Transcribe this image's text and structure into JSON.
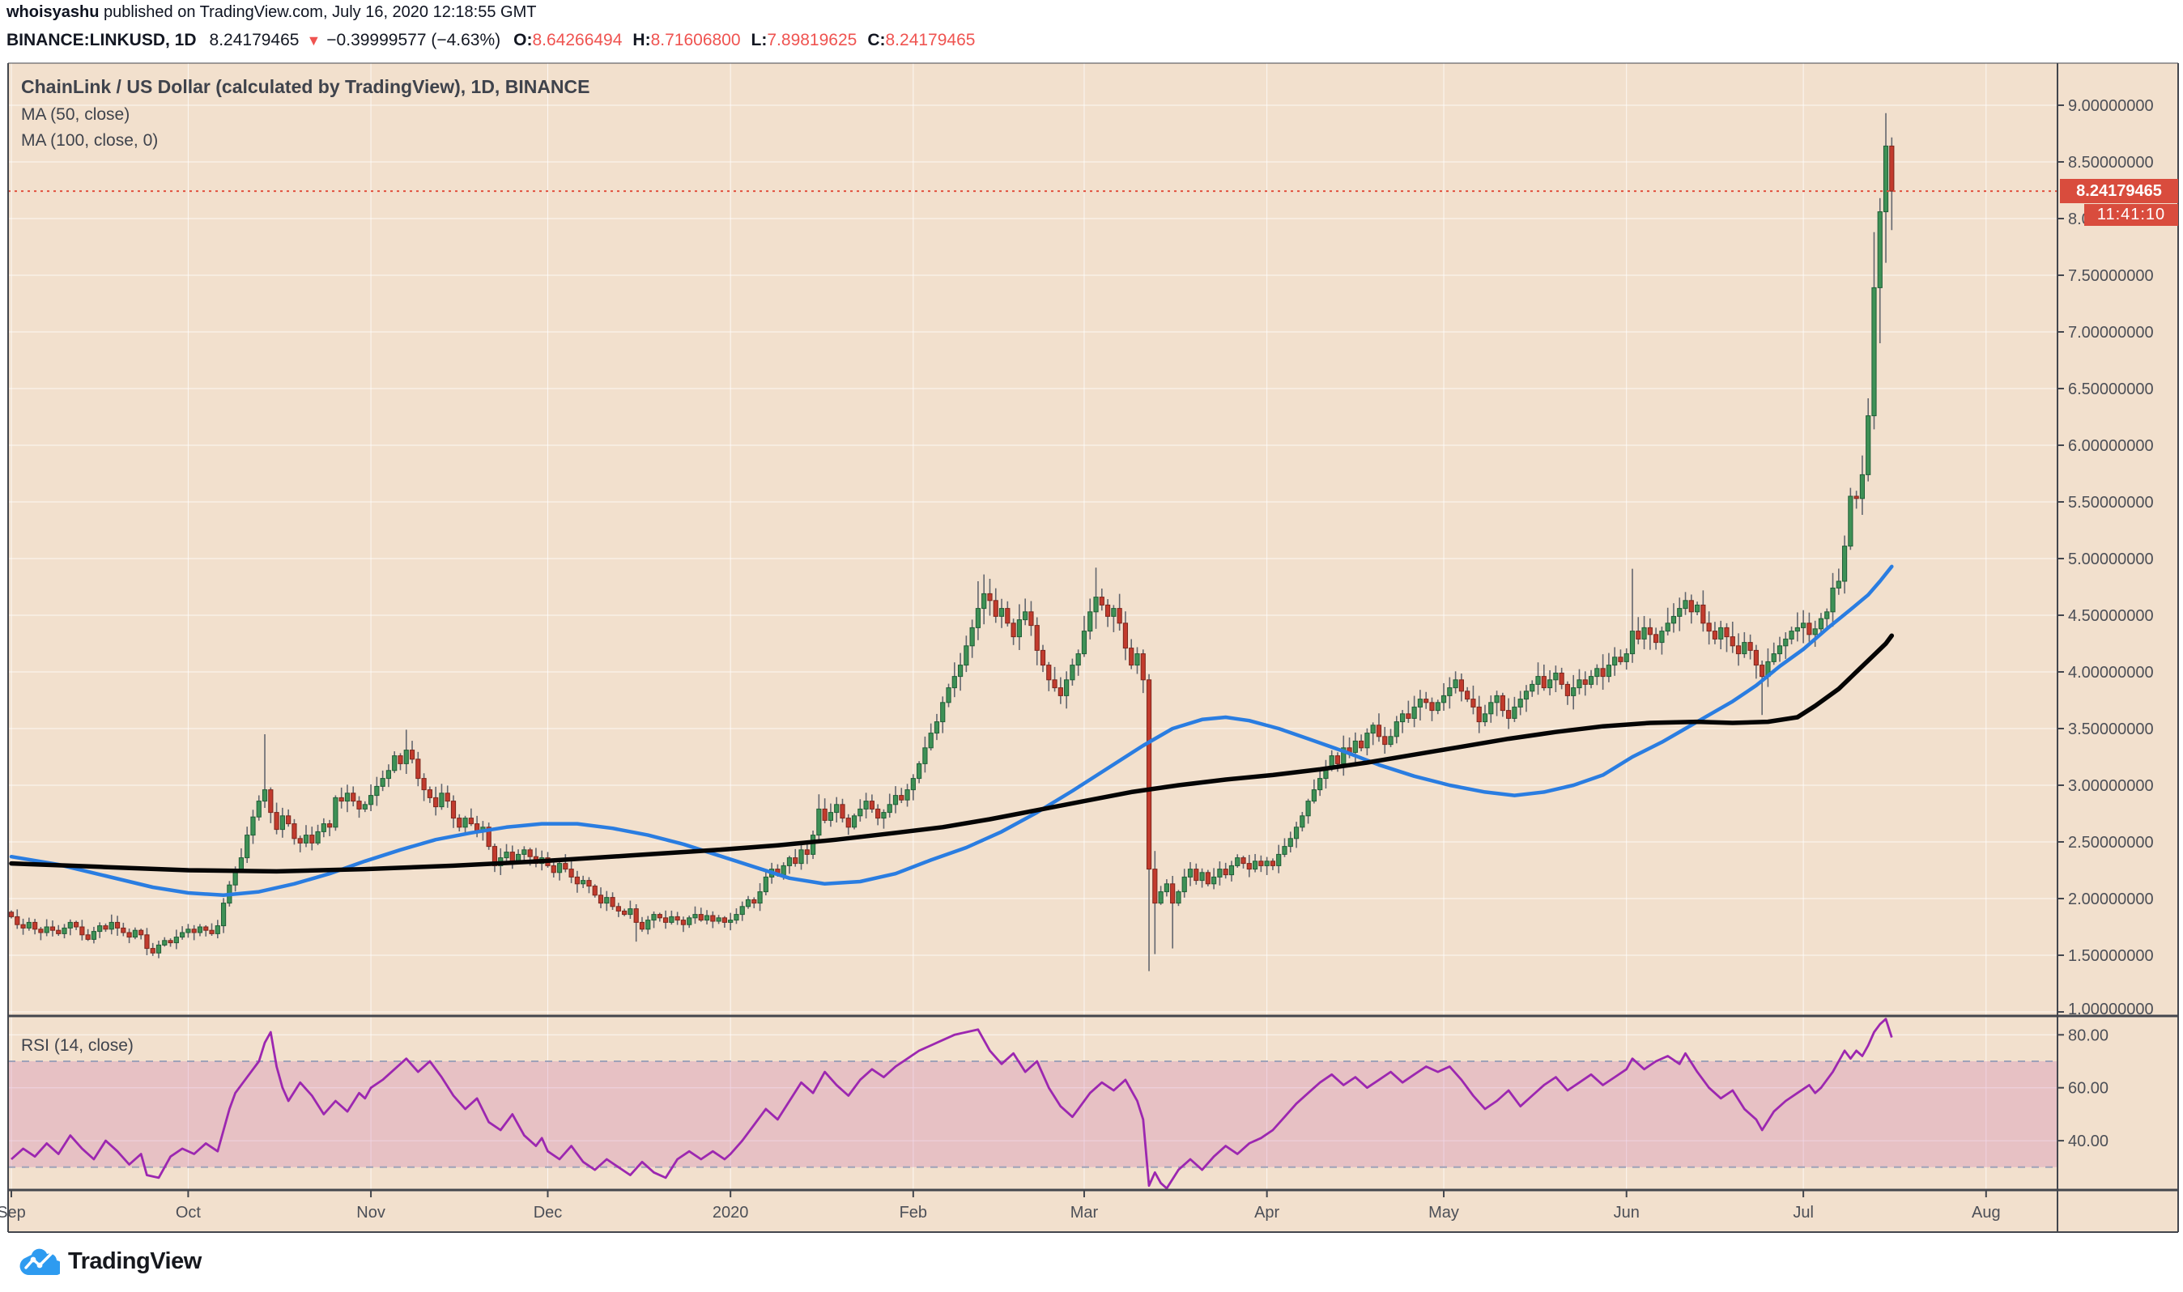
{
  "header": {
    "author": "whoisyashu",
    "byline_rest": " published on TradingView.com, July 16, 2020 12:18:55 GMT"
  },
  "symbol_bar": {
    "symbol": "BINANCE:LINKUSD, 1D",
    "last_price": "8.24179465",
    "direction_icon": "▼",
    "change": "−0.39999577 (−4.63%)",
    "ohlc": [
      {
        "label": "O:",
        "value": "8.64266494"
      },
      {
        "label": "H:",
        "value": "8.71606800"
      },
      {
        "label": "L:",
        "value": "7.89819625"
      },
      {
        "label": "C:",
        "value": "8.24179465"
      }
    ]
  },
  "legend": {
    "title": "ChainLink / US Dollar (calculated by TradingView), 1D, BINANCE",
    "ma50": "MA (50, close)",
    "ma100": "MA (100, close, 0)"
  },
  "rsi_label": "RSI (14, close)",
  "price_axis_label": {
    "price": "8.24179465",
    "countdown": "11:41:10"
  },
  "logo": {
    "text": "TradingView"
  },
  "colors": {
    "chart_bg": "#F2E0CD",
    "grid": "rgba(255,255,255,0.75)",
    "frame": "#43464d",
    "axis_text": "#4c4f57",
    "candle_up_fill": "#3E9156",
    "candle_up_stroke": "#1F5E36",
    "candle_down_fill": "#C23B2D",
    "candle_down_stroke": "#7E261C",
    "wick": "#63666e",
    "ma50": "#2A7DE1",
    "ma100": "#050505",
    "rsi_line": "#9C27B0",
    "rsi_band": "rgba(200,100,170,0.25)",
    "rsi_dashed": "#9fa2b8",
    "price_line": "#E1503F",
    "label_bg": "#D94C3D",
    "value_red": "#ef5350"
  },
  "chart_data": {
    "type": "candlestick",
    "title": "ChainLink / US Dollar (calculated by TradingView), 1D, BINANCE",
    "exchange": "BINANCE",
    "interval": "1D",
    "price_axis": {
      "min": 1.0,
      "max": 9.0,
      "step": 0.5,
      "decimals": 8
    },
    "rsi_axis": {
      "ticks": [
        80,
        60,
        40
      ],
      "overbought": 70,
      "oversold": 30
    },
    "months": [
      {
        "label": "Sep",
        "day": 0
      },
      {
        "label": "Oct",
        "day": 30
      },
      {
        "label": "Nov",
        "day": 61
      },
      {
        "label": "Dec",
        "day": 91
      },
      {
        "label": "2020",
        "day": 122
      },
      {
        "label": "Feb",
        "day": 153
      },
      {
        "label": "Mar",
        "day": 182
      },
      {
        "label": "Apr",
        "day": 213
      },
      {
        "label": "May",
        "day": 243
      },
      {
        "label": "Jun",
        "day": 274
      },
      {
        "label": "Jul",
        "day": 304
      },
      {
        "label": "Aug",
        "day": 335
      }
    ],
    "start_date": "2019-09-01",
    "last_bar_date": "2020-07-16",
    "current_price": 8.24179465,
    "first_open": 1.88,
    "closes": [
      1.84,
      1.77,
      1.74,
      1.79,
      1.73,
      1.7,
      1.75,
      1.72,
      1.69,
      1.74,
      1.79,
      1.75,
      1.68,
      1.64,
      1.71,
      1.76,
      1.73,
      1.79,
      1.74,
      1.7,
      1.66,
      1.72,
      1.68,
      1.56,
      1.52,
      1.59,
      1.63,
      1.61,
      1.66,
      1.7,
      1.73,
      1.7,
      1.75,
      1.72,
      1.69,
      1.76,
      1.96,
      2.12,
      2.26,
      2.36,
      2.56,
      2.72,
      2.86,
      2.96,
      2.76,
      2.61,
      2.73,
      2.66,
      2.53,
      2.49,
      2.56,
      2.49,
      2.59,
      2.66,
      2.63,
      2.89,
      2.86,
      2.93,
      2.86,
      2.79,
      2.83,
      2.91,
      2.99,
      3.06,
      3.13,
      3.26,
      3.19,
      3.31,
      3.23,
      3.06,
      2.96,
      2.89,
      2.81,
      2.93,
      2.86,
      2.71,
      2.63,
      2.71,
      2.66,
      2.59,
      2.63,
      2.46,
      2.29,
      2.36,
      2.41,
      2.33,
      2.39,
      2.43,
      2.37,
      2.31,
      2.36,
      2.29,
      2.23,
      2.31,
      2.26,
      2.19,
      2.13,
      2.16,
      2.11,
      2.03,
      1.96,
      2.01,
      1.93,
      1.89,
      1.86,
      1.91,
      1.79,
      1.73,
      1.81,
      1.86,
      1.83,
      1.79,
      1.84,
      1.81,
      1.77,
      1.83,
      1.86,
      1.81,
      1.85,
      1.8,
      1.83,
      1.79,
      1.81,
      1.86,
      1.93,
      1.99,
      1.96,
      2.06,
      2.19,
      2.26,
      2.21,
      2.29,
      2.36,
      2.31,
      2.43,
      2.39,
      2.56,
      2.79,
      2.69,
      2.76,
      2.83,
      2.71,
      2.63,
      2.73,
      2.79,
      2.86,
      2.79,
      2.71,
      2.76,
      2.83,
      2.91,
      2.87,
      2.96,
      3.06,
      3.19,
      3.33,
      3.46,
      3.56,
      3.73,
      3.86,
      3.96,
      4.06,
      4.23,
      4.39,
      4.56,
      4.69,
      4.63,
      4.49,
      4.56,
      4.43,
      4.31,
      4.46,
      4.53,
      4.41,
      4.19,
      4.06,
      3.93,
      3.86,
      3.79,
      3.93,
      4.06,
      4.16,
      4.36,
      4.53,
      4.66,
      4.59,
      4.49,
      4.56,
      4.43,
      4.21,
      4.06,
      4.16,
      3.93,
      2.26,
      1.96,
      2.06,
      2.13,
      1.96,
      2.06,
      2.19,
      2.26,
      2.16,
      2.23,
      2.13,
      2.19,
      2.26,
      2.21,
      2.29,
      2.36,
      2.31,
      2.26,
      2.33,
      2.29,
      2.33,
      2.29,
      2.39,
      2.46,
      2.53,
      2.63,
      2.73,
      2.86,
      2.96,
      3.06,
      3.16,
      3.26,
      3.19,
      3.33,
      3.29,
      3.39,
      3.33,
      3.46,
      3.53,
      3.43,
      3.36,
      3.43,
      3.56,
      3.63,
      3.59,
      3.69,
      3.76,
      3.73,
      3.66,
      3.73,
      3.79,
      3.86,
      3.93,
      3.83,
      3.76,
      3.69,
      3.56,
      3.63,
      3.73,
      3.79,
      3.66,
      3.59,
      3.69,
      3.76,
      3.83,
      3.89,
      3.96,
      3.86,
      3.93,
      3.99,
      3.89,
      3.79,
      3.86,
      3.93,
      3.89,
      3.96,
      4.03,
      3.96,
      4.06,
      4.13,
      4.09,
      4.16,
      4.36,
      4.29,
      4.39,
      4.33,
      4.26,
      4.36,
      4.43,
      4.49,
      4.56,
      4.63,
      4.53,
      4.59,
      4.43,
      4.36,
      4.29,
      4.39,
      4.31,
      4.23,
      4.16,
      4.26,
      4.19,
      4.06,
      3.96,
      4.09,
      4.16,
      4.23,
      4.29,
      4.36,
      4.39,
      4.43,
      4.33,
      4.38,
      4.47,
      4.53,
      4.74,
      4.8,
      5.11,
      5.55,
      5.53,
      5.74,
      6.26,
      7.39,
      8.06,
      8.64,
      8.2418
    ],
    "wick_overrides": {
      "43": [
        3.45,
        2.8
      ],
      "67": [
        3.49,
        3.1
      ],
      "106": [
        1.95,
        1.62
      ],
      "137": [
        2.92,
        2.52
      ],
      "164": [
        4.8,
        4.28
      ],
      "165": [
        4.86,
        4.42
      ],
      "184": [
        4.92,
        4.38
      ],
      "193": [
        3.98,
        1.36
      ],
      "194": [
        2.42,
        1.51
      ],
      "197": [
        2.2,
        1.56
      ],
      "275": [
        4.91,
        4.08
      ],
      "297": [
        4.1,
        3.62
      ],
      "316": [
        7.88,
        6.14
      ],
      "317": [
        8.18,
        6.9
      ],
      "318": [
        8.93,
        7.61
      ],
      "319": [
        8.7161,
        7.8982
      ]
    },
    "ma50": [
      [
        0,
        2.37
      ],
      [
        8,
        2.3
      ],
      [
        16,
        2.2
      ],
      [
        24,
        2.1
      ],
      [
        30,
        2.05
      ],
      [
        36,
        2.03
      ],
      [
        42,
        2.06
      ],
      [
        48,
        2.13
      ],
      [
        54,
        2.22
      ],
      [
        60,
        2.33
      ],
      [
        66,
        2.43
      ],
      [
        72,
        2.52
      ],
      [
        78,
        2.58
      ],
      [
        84,
        2.63
      ],
      [
        90,
        2.66
      ],
      [
        96,
        2.66
      ],
      [
        102,
        2.62
      ],
      [
        108,
        2.56
      ],
      [
        114,
        2.48
      ],
      [
        120,
        2.38
      ],
      [
        126,
        2.28
      ],
      [
        132,
        2.18
      ],
      [
        138,
        2.13
      ],
      [
        144,
        2.15
      ],
      [
        150,
        2.22
      ],
      [
        156,
        2.34
      ],
      [
        162,
        2.45
      ],
      [
        168,
        2.59
      ],
      [
        174,
        2.76
      ],
      [
        180,
        2.95
      ],
      [
        186,
        3.15
      ],
      [
        192,
        3.35
      ],
      [
        197,
        3.5
      ],
      [
        202,
        3.58
      ],
      [
        206,
        3.6
      ],
      [
        210,
        3.57
      ],
      [
        215,
        3.5
      ],
      [
        220,
        3.41
      ],
      [
        226,
        3.3
      ],
      [
        232,
        3.18
      ],
      [
        238,
        3.08
      ],
      [
        244,
        3.0
      ],
      [
        250,
        2.94
      ],
      [
        255,
        2.91
      ],
      [
        260,
        2.94
      ],
      [
        265,
        3.0
      ],
      [
        270,
        3.09
      ],
      [
        275,
        3.25
      ],
      [
        280,
        3.38
      ],
      [
        284,
        3.5
      ],
      [
        288,
        3.62
      ],
      [
        292,
        3.74
      ],
      [
        296,
        3.88
      ],
      [
        300,
        4.05
      ],
      [
        304,
        4.2
      ],
      [
        308,
        4.38
      ],
      [
        312,
        4.55
      ],
      [
        315,
        4.68
      ],
      [
        317,
        4.8
      ],
      [
        319,
        4.93
      ]
    ],
    "ma100": [
      [
        0,
        2.31
      ],
      [
        15,
        2.28
      ],
      [
        30,
        2.25
      ],
      [
        45,
        2.24
      ],
      [
        60,
        2.26
      ],
      [
        75,
        2.29
      ],
      [
        90,
        2.33
      ],
      [
        105,
        2.38
      ],
      [
        120,
        2.43
      ],
      [
        130,
        2.47
      ],
      [
        140,
        2.52
      ],
      [
        150,
        2.58
      ],
      [
        158,
        2.63
      ],
      [
        166,
        2.7
      ],
      [
        174,
        2.78
      ],
      [
        182,
        2.86
      ],
      [
        190,
        2.94
      ],
      [
        198,
        3.0
      ],
      [
        206,
        3.05
      ],
      [
        214,
        3.09
      ],
      [
        222,
        3.14
      ],
      [
        230,
        3.2
      ],
      [
        238,
        3.27
      ],
      [
        246,
        3.34
      ],
      [
        254,
        3.41
      ],
      [
        262,
        3.47
      ],
      [
        270,
        3.52
      ],
      [
        278,
        3.55
      ],
      [
        286,
        3.56
      ],
      [
        292,
        3.55
      ],
      [
        298,
        3.56
      ],
      [
        303,
        3.6
      ],
      [
        306,
        3.7
      ],
      [
        310,
        3.85
      ],
      [
        313,
        4.0
      ],
      [
        316,
        4.15
      ],
      [
        318,
        4.25
      ],
      [
        319,
        4.32
      ]
    ],
    "rsi": [
      [
        0,
        33
      ],
      [
        2,
        37
      ],
      [
        4,
        34
      ],
      [
        6,
        39
      ],
      [
        8,
        35
      ],
      [
        10,
        42
      ],
      [
        12,
        37
      ],
      [
        14,
        33
      ],
      [
        16,
        40
      ],
      [
        18,
        36
      ],
      [
        20,
        31
      ],
      [
        22,
        35
      ],
      [
        23,
        27
      ],
      [
        25,
        26
      ],
      [
        27,
        34
      ],
      [
        29,
        37
      ],
      [
        31,
        35
      ],
      [
        33,
        39
      ],
      [
        35,
        36
      ],
      [
        36,
        44
      ],
      [
        37,
        52
      ],
      [
        38,
        58
      ],
      [
        40,
        64
      ],
      [
        42,
        70
      ],
      [
        43,
        77
      ],
      [
        44,
        81
      ],
      [
        45,
        68
      ],
      [
        46,
        60
      ],
      [
        47,
        55
      ],
      [
        49,
        62
      ],
      [
        51,
        57
      ],
      [
        53,
        50
      ],
      [
        55,
        55
      ],
      [
        57,
        51
      ],
      [
        59,
        58
      ],
      [
        60,
        56
      ],
      [
        61,
        60
      ],
      [
        63,
        63
      ],
      [
        65,
        67
      ],
      [
        67,
        71
      ],
      [
        69,
        66
      ],
      [
        71,
        70
      ],
      [
        73,
        64
      ],
      [
        75,
        57
      ],
      [
        77,
        52
      ],
      [
        79,
        56
      ],
      [
        81,
        47
      ],
      [
        83,
        44
      ],
      [
        85,
        50
      ],
      [
        87,
        42
      ],
      [
        89,
        38
      ],
      [
        90,
        41
      ],
      [
        91,
        36
      ],
      [
        93,
        33
      ],
      [
        95,
        38
      ],
      [
        97,
        32
      ],
      [
        99,
        29
      ],
      [
        101,
        33
      ],
      [
        103,
        30
      ],
      [
        105,
        27
      ],
      [
        107,
        32
      ],
      [
        109,
        28
      ],
      [
        111,
        26
      ],
      [
        113,
        33
      ],
      [
        115,
        36
      ],
      [
        117,
        33
      ],
      [
        119,
        36
      ],
      [
        121,
        33
      ],
      [
        122,
        35
      ],
      [
        124,
        40
      ],
      [
        126,
        46
      ],
      [
        128,
        52
      ],
      [
        130,
        48
      ],
      [
        132,
        55
      ],
      [
        134,
        62
      ],
      [
        136,
        58
      ],
      [
        138,
        66
      ],
      [
        140,
        61
      ],
      [
        142,
        57
      ],
      [
        144,
        63
      ],
      [
        146,
        67
      ],
      [
        148,
        64
      ],
      [
        150,
        68
      ],
      [
        152,
        71
      ],
      [
        154,
        74
      ],
      [
        156,
        76
      ],
      [
        158,
        78
      ],
      [
        160,
        80
      ],
      [
        162,
        81
      ],
      [
        164,
        82
      ],
      [
        166,
        74
      ],
      [
        168,
        69
      ],
      [
        170,
        73
      ],
      [
        172,
        66
      ],
      [
        174,
        70
      ],
      [
        176,
        60
      ],
      [
        178,
        53
      ],
      [
        180,
        49
      ],
      [
        181,
        52
      ],
      [
        183,
        58
      ],
      [
        185,
        62
      ],
      [
        187,
        59
      ],
      [
        189,
        63
      ],
      [
        191,
        55
      ],
      [
        192,
        48
      ],
      [
        193,
        23
      ],
      [
        194,
        28
      ],
      [
        195,
        24
      ],
      [
        196,
        22
      ],
      [
        198,
        29
      ],
      [
        200,
        33
      ],
      [
        202,
        29
      ],
      [
        204,
        34
      ],
      [
        206,
        38
      ],
      [
        208,
        35
      ],
      [
        210,
        39
      ],
      [
        212,
        41
      ],
      [
        214,
        44
      ],
      [
        216,
        49
      ],
      [
        218,
        54
      ],
      [
        220,
        58
      ],
      [
        222,
        62
      ],
      [
        224,
        65
      ],
      [
        226,
        61
      ],
      [
        228,
        64
      ],
      [
        230,
        60
      ],
      [
        232,
        63
      ],
      [
        234,
        66
      ],
      [
        236,
        62
      ],
      [
        238,
        65
      ],
      [
        240,
        68
      ],
      [
        242,
        66
      ],
      [
        244,
        68
      ],
      [
        246,
        63
      ],
      [
        248,
        57
      ],
      [
        250,
        52
      ],
      [
        252,
        55
      ],
      [
        254,
        59
      ],
      [
        256,
        53
      ],
      [
        258,
        57
      ],
      [
        260,
        61
      ],
      [
        262,
        64
      ],
      [
        264,
        59
      ],
      [
        266,
        62
      ],
      [
        268,
        65
      ],
      [
        270,
        61
      ],
      [
        272,
        64
      ],
      [
        274,
        67
      ],
      [
        275,
        71
      ],
      [
        277,
        67
      ],
      [
        279,
        70
      ],
      [
        281,
        72
      ],
      [
        283,
        69
      ],
      [
        284,
        73
      ],
      [
        286,
        66
      ],
      [
        288,
        60
      ],
      [
        290,
        56
      ],
      [
        292,
        59
      ],
      [
        294,
        52
      ],
      [
        296,
        48
      ],
      [
        297,
        44
      ],
      [
        299,
        51
      ],
      [
        301,
        55
      ],
      [
        303,
        58
      ],
      [
        305,
        61
      ],
      [
        306,
        58
      ],
      [
        307,
        60
      ],
      [
        308,
        63
      ],
      [
        309,
        66
      ],
      [
        310,
        70
      ],
      [
        311,
        74
      ],
      [
        312,
        71
      ],
      [
        313,
        74
      ],
      [
        314,
        72
      ],
      [
        315,
        76
      ],
      [
        316,
        81
      ],
      [
        317,
        84
      ],
      [
        318,
        86
      ],
      [
        319,
        79
      ]
    ]
  }
}
